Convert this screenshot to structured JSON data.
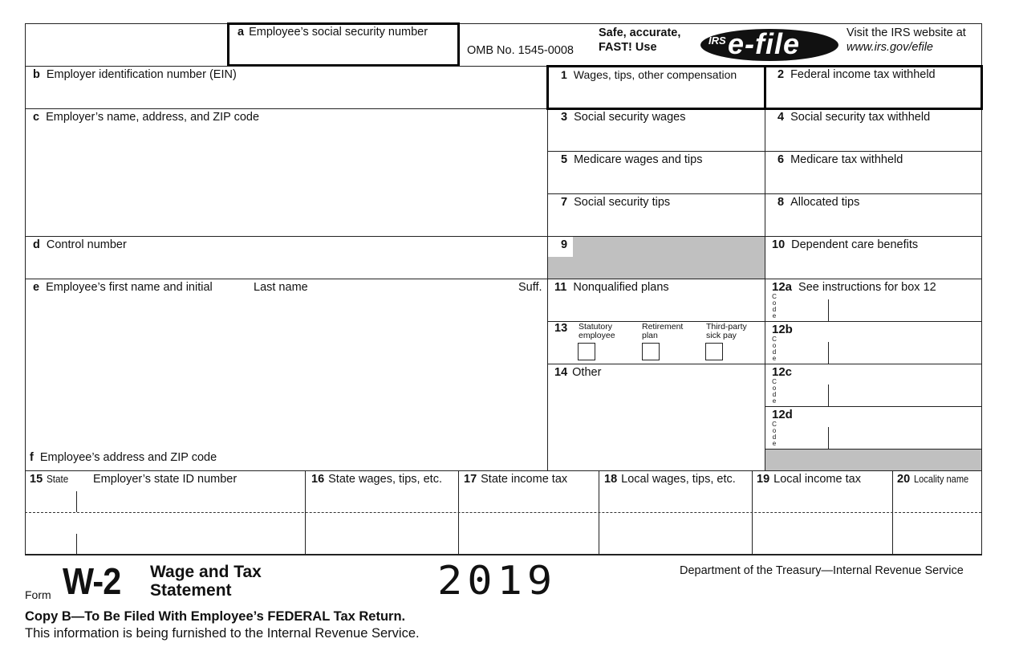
{
  "header": {
    "box_a": {
      "letter": "a",
      "label": "Employee’s social security number"
    },
    "omb": "OMB No. 1545-0008",
    "efile_promo": {
      "line1": "Safe, accurate,",
      "line2": "FAST! Use"
    },
    "efile_logo": {
      "irs": "IRS",
      "text": "e-file"
    },
    "website": {
      "line1": "Visit the IRS website at",
      "line2": "www.irs.gov/efile"
    }
  },
  "left": {
    "b": {
      "letter": "b",
      "label": "Employer identification number (EIN)"
    },
    "c": {
      "letter": "c",
      "label": "Employer’s name, address, and ZIP code"
    },
    "d": {
      "letter": "d",
      "label": "Control number"
    },
    "e": {
      "letter": "e",
      "label": "Employee’s first name and initial",
      "last": "Last name",
      "suffix": "Suff."
    },
    "f": {
      "letter": "f",
      "label": "Employee’s address and ZIP code"
    }
  },
  "boxes": {
    "b1": {
      "num": "1",
      "label": "Wages, tips, other compensation"
    },
    "b2": {
      "num": "2",
      "label": "Federal income tax withheld"
    },
    "b3": {
      "num": "3",
      "label": "Social security wages"
    },
    "b4": {
      "num": "4",
      "label": "Social security tax withheld"
    },
    "b5": {
      "num": "5",
      "label": "Medicare wages and tips"
    },
    "b6": {
      "num": "6",
      "label": "Medicare tax withheld"
    },
    "b7": {
      "num": "7",
      "label": "Social security tips"
    },
    "b8": {
      "num": "8",
      "label": "Allocated tips"
    },
    "b9": {
      "num": "9"
    },
    "b10": {
      "num": "10",
      "label": "Dependent care benefits"
    },
    "b11": {
      "num": "11",
      "label": "Nonqualified plans"
    },
    "b12a": {
      "num": "12a",
      "label": "See instructions for box 12"
    },
    "b12b": {
      "num": "12b"
    },
    "b12c": {
      "num": "12c"
    },
    "b12d": {
      "num": "12d"
    },
    "code_letters": [
      "C",
      "o",
      "d",
      "e"
    ],
    "b13": {
      "num": "13",
      "statutory": {
        "l1": "Statutory",
        "l2": "employee"
      },
      "retirement": {
        "l1": "Retirement",
        "l2": "plan"
      },
      "thirdparty": {
        "l1": "Third-party",
        "l2": "sick pay"
      }
    },
    "b14": {
      "num": "14",
      "label": "Other"
    }
  },
  "state_row": {
    "b15": {
      "num": "15",
      "label": "State",
      "id_label": "Employer’s state ID number"
    },
    "b16": {
      "num": "16",
      "label": "State wages, tips, etc."
    },
    "b17": {
      "num": "17",
      "label": "State income tax"
    },
    "b18": {
      "num": "18",
      "label": "Local wages, tips, etc."
    },
    "b19": {
      "num": "19",
      "label": "Local income tax"
    },
    "b20": {
      "num": "20",
      "label": "Locality name"
    }
  },
  "footer": {
    "form_word": "Form",
    "form_id": "W-2",
    "title1": "Wage and Tax",
    "title2": "Statement",
    "year": "2019",
    "dept": "Department of the Treasury—Internal Revenue Service",
    "copy": "Copy B—To Be Filed With Employee’s FEDERAL Tax Return.",
    "note": "This information is being furnished to the Internal Revenue Service."
  }
}
